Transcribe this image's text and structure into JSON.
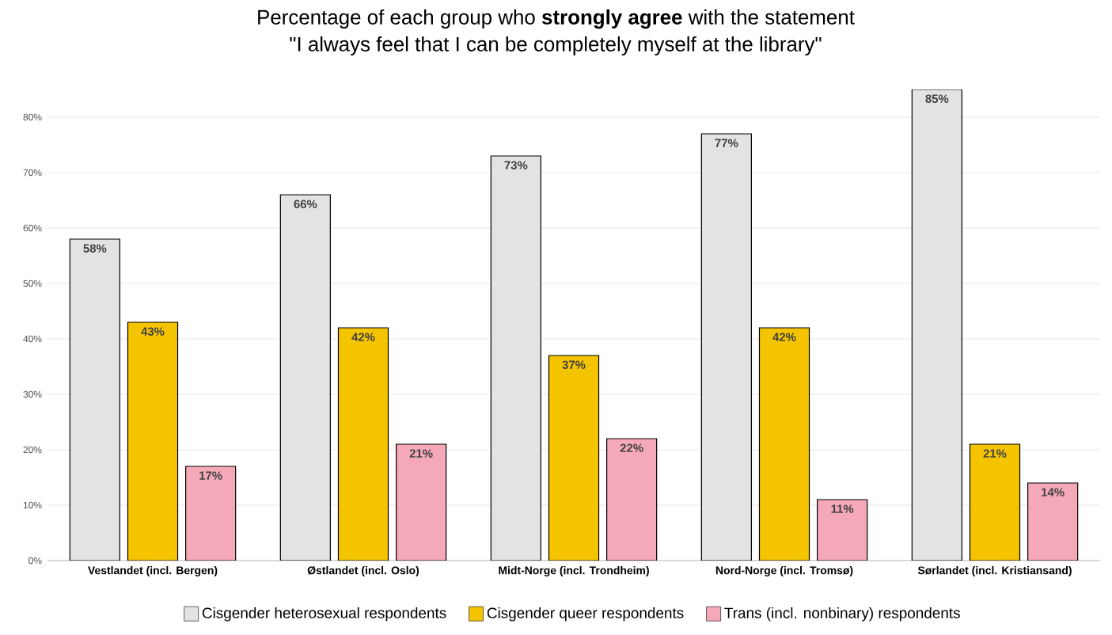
{
  "chart_data": {
    "type": "bar",
    "title": "Percentage of each group who **strongly agree** with the statement",
    "subtitle": "\"I always feel that I can be completely myself at the library\"",
    "categories": [
      "Vestlandet (incl. Bergen)",
      "Østlandet (incl. Oslo)",
      "Midt-Norge (incl. Trondheim)",
      "Nord-Norge (incl. Tromsø)",
      "Sørlandet (incl. Kristiansand)"
    ],
    "series": [
      {
        "name": "Cisgender heterosexual respondents",
        "color": "#e3e3e3",
        "values": [
          58,
          66,
          73,
          77,
          85
        ],
        "value_labels": [
          "58%",
          "66%",
          "73%",
          "77%",
          "85%"
        ]
      },
      {
        "name": "Cisgender queer respondents",
        "color": "#f5c400",
        "values": [
          43,
          42,
          37,
          42,
          21
        ],
        "value_labels": [
          "43%",
          "42%",
          "37%",
          "42%",
          "21%"
        ]
      },
      {
        "name": "Trans (incl. nonbinary) respondents",
        "color": "#f5a9b8",
        "values": [
          17,
          21,
          22,
          11,
          14
        ],
        "value_labels": [
          "17%",
          "21%",
          "22%",
          "11%",
          "14%"
        ]
      }
    ],
    "ylim": [
      0,
      85
    ],
    "yticks": [
      {
        "value": 0,
        "label": "0%"
      },
      {
        "value": 10,
        "label": "10%"
      },
      {
        "value": 20,
        "label": "20%"
      },
      {
        "value": 30,
        "label": "30%"
      },
      {
        "value": 40,
        "label": "40%"
      },
      {
        "value": 50,
        "label": "50%"
      },
      {
        "value": 60,
        "label": "60%"
      },
      {
        "value": 70,
        "label": "70%"
      },
      {
        "value": 80,
        "label": "80%"
      }
    ],
    "grid": "y",
    "legend": "bottom"
  }
}
